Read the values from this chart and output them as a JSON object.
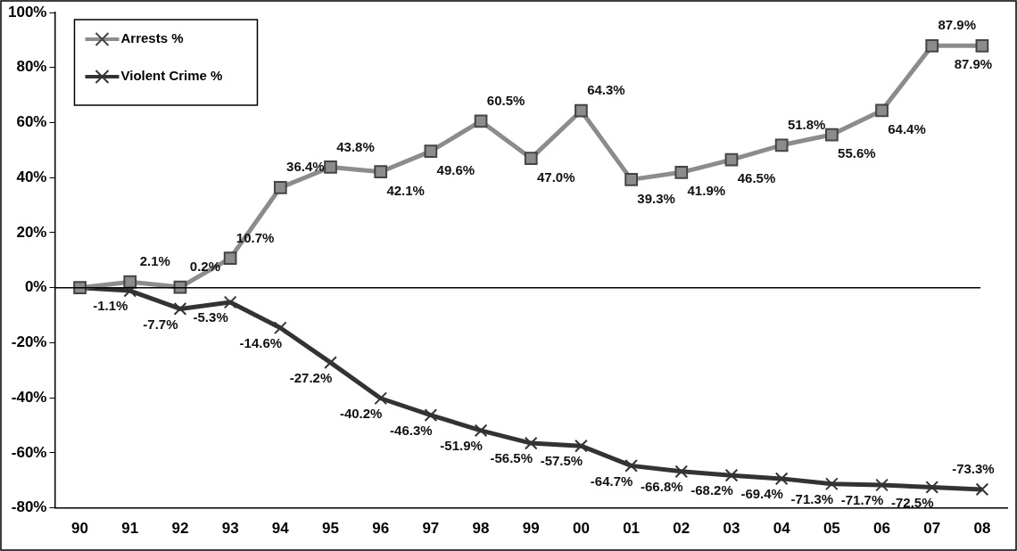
{
  "chart_data": {
    "type": "line",
    "categories": [
      "90",
      "91",
      "92",
      "93",
      "94",
      "95",
      "96",
      "97",
      "98",
      "99",
      "00",
      "01",
      "02",
      "03",
      "04",
      "05",
      "06",
      "07",
      "08"
    ],
    "series": [
      {
        "name": "Arrests %",
        "color": "#8c8c8c",
        "marker": "square",
        "values": [
          0,
          2.1,
          0.2,
          10.7,
          36.4,
          43.8,
          42.1,
          49.6,
          60.5,
          47.0,
          64.3,
          39.3,
          41.9,
          46.5,
          51.8,
          55.6,
          64.4,
          87.9,
          87.9
        ],
        "value_labels": [
          null,
          "2.1%",
          "0.2%",
          "10.7%",
          "36.4%",
          "43.8%",
          "42.1%",
          "49.6%",
          "60.5%",
          "47.0%",
          "64.3%",
          "39.3%",
          "41.9%",
          "46.5%",
          "51.8%",
          "55.6%",
          "64.4%",
          "87.9%",
          "87.9%"
        ]
      },
      {
        "name": "Violent Crime %",
        "color": "#333333",
        "marker": "cross",
        "values": [
          0,
          -1.1,
          -7.7,
          -5.3,
          -14.6,
          -27.2,
          -40.2,
          -46.3,
          -51.9,
          -56.5,
          -57.5,
          -64.7,
          -66.8,
          -68.2,
          -69.4,
          -71.3,
          -71.7,
          -72.5,
          -73.3
        ],
        "value_labels": [
          null,
          "-1.1%",
          "-7.7%",
          "-5.3%",
          "-14.6%",
          "-27.2%",
          "-40.2%",
          "-46.3%",
          "-51.9%",
          "-56.5%",
          "-57.5%",
          "-64.7%",
          "-66.8%",
          "-68.2%",
          "-69.4%",
          "-71.3%",
          "-71.7%",
          "-72.5%",
          "-73.3%"
        ]
      }
    ],
    "ylim": [
      -80,
      100
    ],
    "yticks": [
      {
        "value": -80,
        "label": "-80%"
      },
      {
        "value": -60,
        "label": "-60%"
      },
      {
        "value": -40,
        "label": "-40%"
      },
      {
        "value": -20,
        "label": "-20%"
      },
      {
        "value": 0,
        "label": "0%"
      },
      {
        "value": 20,
        "label": "20%"
      },
      {
        "value": 40,
        "label": "40%"
      },
      {
        "value": 60,
        "label": "60%"
      },
      {
        "value": 80,
        "label": "80%"
      },
      {
        "value": 100,
        "label": "100%"
      }
    ],
    "ref_lines": [
      {
        "axis": "y",
        "value": 0,
        "color": "#000000"
      }
    ],
    "grid": false,
    "legend": "top left",
    "line_style": "solid"
  }
}
